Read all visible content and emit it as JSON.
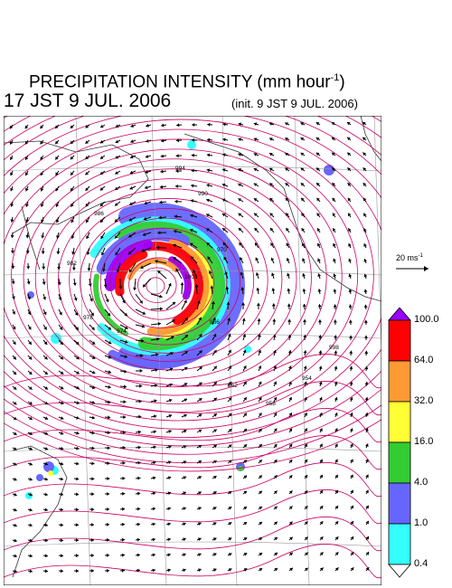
{
  "header": {
    "title": "PRECIPITATION INTENSITY (mm hour",
    "title_exponent": "-1",
    "title_close": ")",
    "valid_time": "17 JST 9 JUL. 2006",
    "init_time": "(init. 9 JST 9 JUL. 2006)"
  },
  "wind_scale": {
    "label": "20 ms",
    "exponent": "-1"
  },
  "legend": {
    "levels": [
      "100.0",
      "64.0",
      "32.0",
      "16.0",
      "4.0",
      "1.0",
      "0.4"
    ],
    "colors": [
      "#9900ff",
      "#ff0000",
      "#ff9933",
      "#ffff33",
      "#33cc33",
      "#6666ff",
      "#33ffff",
      "#ffffff"
    ]
  },
  "map": {
    "contour_color": "#cc0066",
    "arrow_color": "#000000",
    "contour_labels": [
      "994",
      "990",
      "986",
      "982",
      "978",
      "974",
      "970",
      "966",
      "962",
      "958",
      "954",
      "998",
      "1002"
    ]
  }
}
